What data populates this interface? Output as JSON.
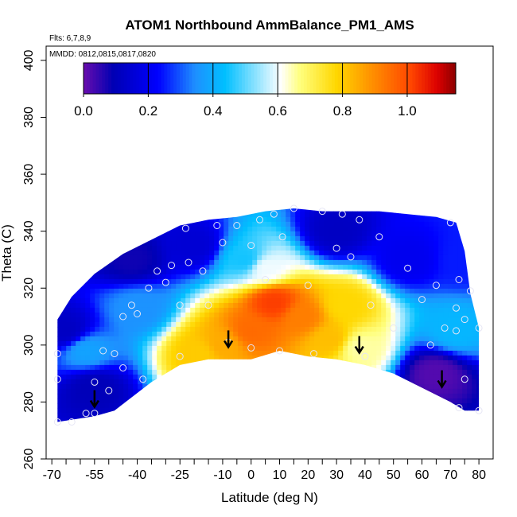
{
  "chart_data": {
    "type": "heatmap",
    "title": "ATOM1 Northbound AmmBalance_PM1_AMS",
    "flights_label": "Flts: 6,7,8,9",
    "dates_label": "MMDD: 0812,0815,0817,0820",
    "xlabel": "Latitude (deg N)",
    "ylabel": "Theta (C)",
    "xlim": [
      -72,
      85
    ],
    "ylim": [
      260,
      405
    ],
    "x_ticks": [
      -70,
      -65,
      -60,
      -55,
      -50,
      -45,
      -40,
      -35,
      -30,
      -25,
      -20,
      -15,
      -10,
      -5,
      0,
      5,
      10,
      15,
      20,
      25,
      30,
      35,
      40,
      45,
      50,
      55,
      60,
      65,
      70,
      75,
      80
    ],
    "x_tick_labels": [
      "-70",
      "-55",
      "-40",
      "-25",
      "-10",
      "0",
      "10",
      "20",
      "30",
      "40",
      "50",
      "60",
      "70",
      "80"
    ],
    "x_tick_label_values": [
      -70,
      -55,
      -40,
      -25,
      -10,
      0,
      10,
      20,
      30,
      40,
      50,
      60,
      70,
      80
    ],
    "y_ticks": [
      260,
      280,
      300,
      320,
      340,
      360,
      380,
      400
    ],
    "y_tick_labels": [
      "260",
      "280",
      "300",
      "320",
      "340",
      "360",
      "380",
      "400"
    ],
    "colorbar": {
      "range": [
        0.0,
        1.15
      ],
      "tick_values": [
        0.0,
        0.2,
        0.4,
        0.6,
        0.8,
        1.0
      ],
      "tick_labels": [
        "0.0",
        "0.2",
        "0.4",
        "0.6",
        "0.8",
        "1.0"
      ],
      "colors": [
        "#6a0dad",
        "#0000b4",
        "#0000ff",
        "#1e90ff",
        "#00bfff",
        "#ffffff",
        "#ffff80",
        "#ffd700",
        "#ff8c00",
        "#ff4500",
        "#dc0000",
        "#8b0000"
      ]
    },
    "field_centers": [
      {
        "lat": 8,
        "theta": 315,
        "value": 1.02
      },
      {
        "lat": 18,
        "theta": 310,
        "value": 0.92
      },
      {
        "lat": 28,
        "theta": 302,
        "value": 0.82
      },
      {
        "lat": -10,
        "theta": 300,
        "value": 0.85
      },
      {
        "lat": -18,
        "theta": 297,
        "value": 0.8
      },
      {
        "lat": 0,
        "theta": 305,
        "value": 0.95
      },
      {
        "lat": 33,
        "theta": 314,
        "value": 0.78
      },
      {
        "lat": 38,
        "theta": 299,
        "value": 0.65
      },
      {
        "lat": 5,
        "theta": 327,
        "value": 0.6
      },
      {
        "lat": -2,
        "theta": 330,
        "value": 0.45
      },
      {
        "lat": -40,
        "theta": 313,
        "value": 0.35
      },
      {
        "lat": -58,
        "theta": 298,
        "value": 0.38
      },
      {
        "lat": 72,
        "theta": 305,
        "value": 0.42
      },
      {
        "lat": 65,
        "theta": 290,
        "value": 0.02
      },
      {
        "lat": -55,
        "theta": 285,
        "value": 0.1
      },
      {
        "lat": -65,
        "theta": 305,
        "value": 0.12
      },
      {
        "lat": -42,
        "theta": 330,
        "value": 0.08
      },
      {
        "lat": 55,
        "theta": 330,
        "value": 0.2
      },
      {
        "lat": 30,
        "theta": 340,
        "value": 0.12
      },
      {
        "lat": -20,
        "theta": 335,
        "value": 0.15
      },
      {
        "lat": 75,
        "theta": 330,
        "value": 0.25
      }
    ],
    "data_envelope": [
      [
        -68,
        273
      ],
      [
        -55,
        275
      ],
      [
        -48,
        277
      ],
      [
        -35,
        287
      ],
      [
        -25,
        293
      ],
      [
        -15,
        295
      ],
      [
        0,
        295
      ],
      [
        10,
        298
      ],
      [
        20,
        296
      ],
      [
        30,
        295
      ],
      [
        40,
        293
      ],
      [
        50,
        290
      ],
      [
        60,
        285
      ],
      [
        70,
        280
      ],
      [
        75,
        277
      ],
      [
        80,
        277
      ],
      [
        80,
        306
      ],
      [
        77,
        318
      ],
      [
        75,
        333
      ],
      [
        72,
        343
      ],
      [
        65,
        345
      ],
      [
        55,
        346
      ],
      [
        45,
        347
      ],
      [
        35,
        347
      ],
      [
        25,
        347
      ],
      [
        15,
        348
      ],
      [
        5,
        347
      ],
      [
        -5,
        345
      ],
      [
        -15,
        344
      ],
      [
        -25,
        342
      ],
      [
        -35,
        337
      ],
      [
        -45,
        332
      ],
      [
        -55,
        325
      ],
      [
        -63,
        317
      ],
      [
        -68,
        309
      ]
    ],
    "sample_points": [
      [
        -68,
        297
      ],
      [
        -68,
        288
      ],
      [
        -68,
        273
      ],
      [
        -63,
        273
      ],
      [
        -58,
        276
      ],
      [
        -55,
        287
      ],
      [
        -52,
        298
      ],
      [
        -50,
        284
      ],
      [
        -48,
        297
      ],
      [
        -45,
        310
      ],
      [
        -42,
        314
      ],
      [
        -40,
        311
      ],
      [
        -38,
        288
      ],
      [
        -36,
        320
      ],
      [
        -33,
        326
      ],
      [
        -30,
        322
      ],
      [
        -28,
        328
      ],
      [
        -25,
        314
      ],
      [
        -25,
        296
      ],
      [
        -23,
        341
      ],
      [
        -22,
        329
      ],
      [
        -17,
        326
      ],
      [
        -15,
        314
      ],
      [
        -12,
        342
      ],
      [
        -10,
        336
      ],
      [
        -8,
        301
      ],
      [
        -5,
        342
      ],
      [
        0,
        335
      ],
      [
        0,
        299
      ],
      [
        3,
        344
      ],
      [
        5,
        323
      ],
      [
        8,
        346
      ],
      [
        10,
        298
      ],
      [
        11,
        338
      ],
      [
        15,
        348
      ],
      [
        20,
        321
      ],
      [
        22,
        297
      ],
      [
        25,
        347
      ],
      [
        30,
        334
      ],
      [
        32,
        346
      ],
      [
        35,
        331
      ],
      [
        38,
        344
      ],
      [
        40,
        296
      ],
      [
        42,
        314
      ],
      [
        45,
        338
      ],
      [
        50,
        306
      ],
      [
        55,
        327
      ],
      [
        60,
        316
      ],
      [
        63,
        300
      ],
      [
        65,
        321
      ],
      [
        68,
        306
      ],
      [
        70,
        343
      ],
      [
        72,
        313
      ],
      [
        72,
        305
      ],
      [
        73,
        323
      ],
      [
        75,
        309
      ],
      [
        75,
        288
      ],
      [
        77,
        319
      ],
      [
        80,
        306
      ],
      [
        80,
        277
      ],
      [
        73,
        278
      ],
      [
        -45,
        292
      ],
      [
        -55,
        276
      ]
    ],
    "arrows": [
      {
        "lat": -55,
        "theta": 278
      },
      {
        "lat": -8,
        "theta": 299
      },
      {
        "lat": 38,
        "theta": 297
      },
      {
        "lat": 67,
        "theta": 285
      }
    ]
  }
}
